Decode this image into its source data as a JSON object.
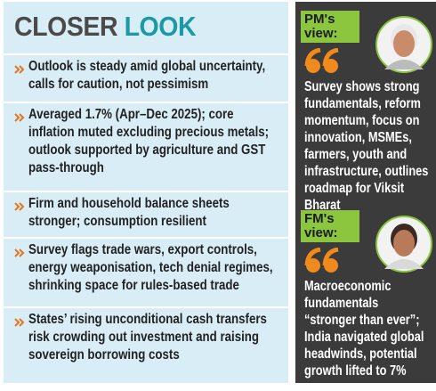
{
  "header": {
    "title": {
      "part1": "CLOSER",
      "part2": "LOOK"
    }
  },
  "bullets": [
    "Outlook is steady amid global uncertainty, calls for caution, not pessimism",
    "Averaged 1.7% (Apr–Dec 2025); core inflation muted excluding precious metals; outlook supported by agriculture and GST pass-through",
    "Firm and household balance sheets stronger; consumption resilient",
    "Survey flags trade wars, export controls, energy weaponisation, tech denial regimes, shrinking space for rules-based trade",
    "States’ rising unconditional cash transfers risk crowding out investment and raising sovereign borrowing costs"
  ],
  "views": [
    {
      "tab_line1": "PM's",
      "tab_line2": "view:",
      "text": "Survey shows strong fundamentals, reform momentum, focus on innovation, MSMEs, farmers, youth and infrastructure, outlines roadmap for Viksit Bharat"
    },
    {
      "tab_line1": "FM's",
      "tab_line2": "view:",
      "text": "Macroeconomic fundamentals “stronger than ever”; India navigated global headwinds, potential growth lifted to 7%"
    }
  ]
}
